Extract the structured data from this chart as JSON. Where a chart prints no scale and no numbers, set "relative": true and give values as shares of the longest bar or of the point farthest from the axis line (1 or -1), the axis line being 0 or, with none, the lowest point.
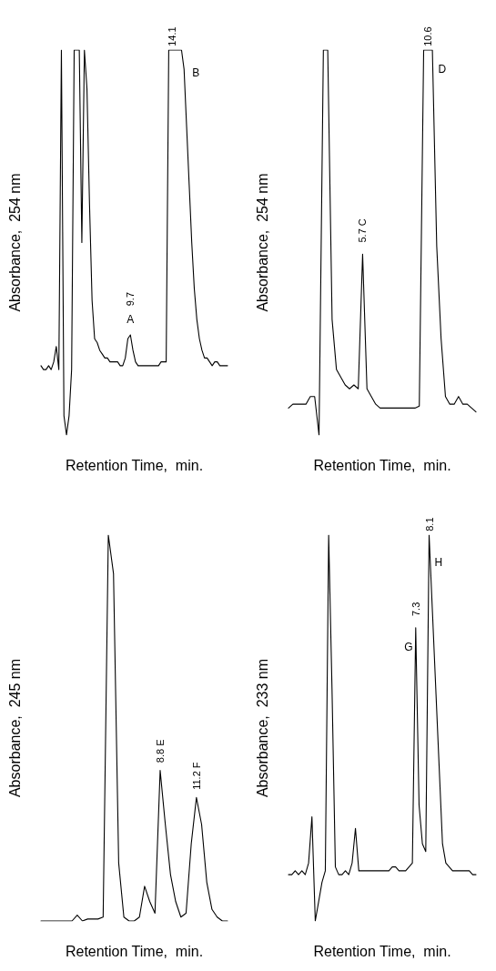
{
  "chart_data": [
    {
      "type": "line",
      "relative": true,
      "xlabel": "Retention Time,  min.",
      "ylabel": "Absorbance,  254 nm",
      "marker": "none",
      "line_style": "solid",
      "categories": [
        null,
        null,
        null,
        null,
        null,
        null,
        null,
        null,
        null,
        null,
        null,
        null,
        null,
        null,
        null,
        null,
        null,
        null,
        null,
        null,
        null,
        null,
        null,
        null,
        null,
        null,
        null,
        null,
        null,
        null,
        null,
        null,
        null,
        null,
        null,
        null,
        null,
        null,
        null,
        null,
        null,
        null,
        null,
        null,
        null,
        null,
        null,
        null,
        null,
        null,
        null,
        null,
        null,
        null,
        null,
        null,
        null,
        null,
        null,
        null,
        null,
        null,
        null,
        null,
        null,
        null,
        null,
        null,
        null,
        null,
        null,
        null,
        null,
        null
      ],
      "series": [
        {
          "color": "#000000",
          "values": [
            0.18,
            0.17,
            0.17,
            0.18,
            0.17,
            0.19,
            0.23,
            0.17,
            1,
            0.05,
            0,
            0.05,
            0.17,
            1,
            1,
            1,
            0.5,
            1,
            0.9,
            0.6,
            0.35,
            0.25,
            0.24,
            0.22,
            0.21,
            0.2,
            0.2,
            0.19,
            0.19,
            0.19,
            0.19,
            0.18,
            0.18,
            0.2,
            0.25,
            0.26,
            0.22,
            0.19,
            0.18,
            0.18,
            0.18,
            0.18,
            0.18,
            0.18,
            0.18,
            0.18,
            0.18,
            0.19,
            0.19,
            0.19,
            1,
            1,
            1,
            1,
            1,
            1,
            0.95,
            0.8,
            0.65,
            0.5,
            0.38,
            0.3,
            0.25,
            0.22,
            0.2,
            0.2,
            0.19,
            0.18,
            0.19,
            0.19,
            0.18,
            0.18,
            0.18,
            0.18
          ]
        }
      ],
      "annotations": [
        "A",
        "9.7",
        "14.1",
        "B"
      ]
    },
    {
      "type": "line",
      "relative": true,
      "xlabel": "Retention Time,  min.",
      "ylabel": "Absorbance,  254 nm",
      "marker": "none",
      "line_style": "solid",
      "categories": [
        null,
        null,
        null,
        null,
        null,
        null,
        null,
        null,
        null,
        null,
        null,
        null,
        null,
        null,
        null,
        null,
        null,
        null,
        null,
        null,
        null,
        null,
        null,
        null,
        null,
        null,
        null,
        null,
        null,
        null,
        null,
        null,
        null,
        null,
        null,
        null,
        null,
        null,
        null,
        null,
        null,
        null,
        null,
        null
      ],
      "series": [
        {
          "color": "#000000",
          "values": [
            0.07,
            0.08,
            0.08,
            0.08,
            0.08,
            0.1,
            0.1,
            0,
            1,
            1,
            0.3,
            0.17,
            0.15,
            0.13,
            0.12,
            0.13,
            0.12,
            0.47,
            0.12,
            0.1,
            0.08,
            0.07,
            0.07,
            0.07,
            0.07,
            0.07,
            0.07,
            0.07,
            0.07,
            0.07,
            0.075,
            1,
            1,
            1,
            0.49,
            0.25,
            0.1,
            0.08,
            0.08,
            0.1,
            0.08,
            0.08,
            0.07,
            0.06
          ]
        }
      ],
      "annotations": [
        "5.7 C",
        "10.6",
        "D"
      ]
    },
    {
      "type": "line",
      "relative": true,
      "xlabel": "Retention Time,  min.",
      "ylabel": "Absorbance,  245 nm",
      "marker": "none",
      "line_style": "solid",
      "categories": [
        null,
        null,
        null,
        null,
        null,
        null,
        null,
        null,
        null,
        null,
        null,
        null,
        null,
        null,
        null,
        null,
        null,
        null,
        null,
        null,
        null,
        null,
        null,
        null,
        null,
        null,
        null,
        null,
        null,
        null,
        null,
        null,
        null,
        null,
        null,
        null,
        null
      ],
      "series": [
        {
          "color": "#000000",
          "values": [
            0,
            0,
            0,
            0,
            0,
            0,
            0,
            0.015,
            0,
            0.005,
            0.005,
            0.005,
            0.01,
            1,
            0.9,
            0.15,
            0.01,
            0,
            0,
            0.01,
            0.09,
            0.05,
            0.02,
            0.39,
            0.25,
            0.12,
            0.05,
            0.01,
            0.02,
            0.2,
            0.32,
            0.25,
            0.1,
            0.03,
            0.01,
            0,
            0
          ]
        }
      ],
      "annotations": [
        "8.8 E",
        "11.2 F"
      ]
    },
    {
      "type": "line",
      "relative": true,
      "xlabel": "Retention Time,  min.",
      "ylabel": "Absorbance,  233 nm",
      "marker": "none",
      "line_style": "solid",
      "categories": [
        null,
        null,
        null,
        null,
        null,
        null,
        null,
        null,
        null,
        null,
        null,
        null,
        null,
        null,
        null,
        null,
        null,
        null,
        null,
        null,
        null,
        null,
        null,
        null,
        null,
        null,
        null,
        null,
        null,
        null,
        null,
        null,
        null,
        null,
        null,
        null,
        null,
        null,
        null,
        null,
        null,
        null,
        null,
        null,
        null,
        null,
        null,
        null,
        null,
        null,
        null,
        null,
        null,
        null,
        null,
        null,
        null
      ],
      "series": [
        {
          "color": "#000000",
          "values": [
            0.12,
            0.12,
            0.13,
            0.12,
            0.13,
            0.12,
            0.15,
            0.27,
            0,
            0.05,
            0.1,
            0.13,
            1,
            0.6,
            0.14,
            0.12,
            0.12,
            0.13,
            0.12,
            0.15,
            0.24,
            0.13,
            0.13,
            0.13,
            0.13,
            0.13,
            0.13,
            0.13,
            0.13,
            0.13,
            0.13,
            0.14,
            0.14,
            0.13,
            0.13,
            0.13,
            0.14,
            0.15,
            0.76,
            0.3,
            0.2,
            0.18,
            1,
            0.8,
            0.6,
            0.4,
            0.2,
            0.15,
            0.14,
            0.13,
            0.13,
            0.13,
            0.13,
            0.13,
            0.13,
            0.12,
            0.12
          ]
        }
      ],
      "annotations": [
        "G",
        "7.3",
        "8.1",
        "H"
      ]
    }
  ]
}
